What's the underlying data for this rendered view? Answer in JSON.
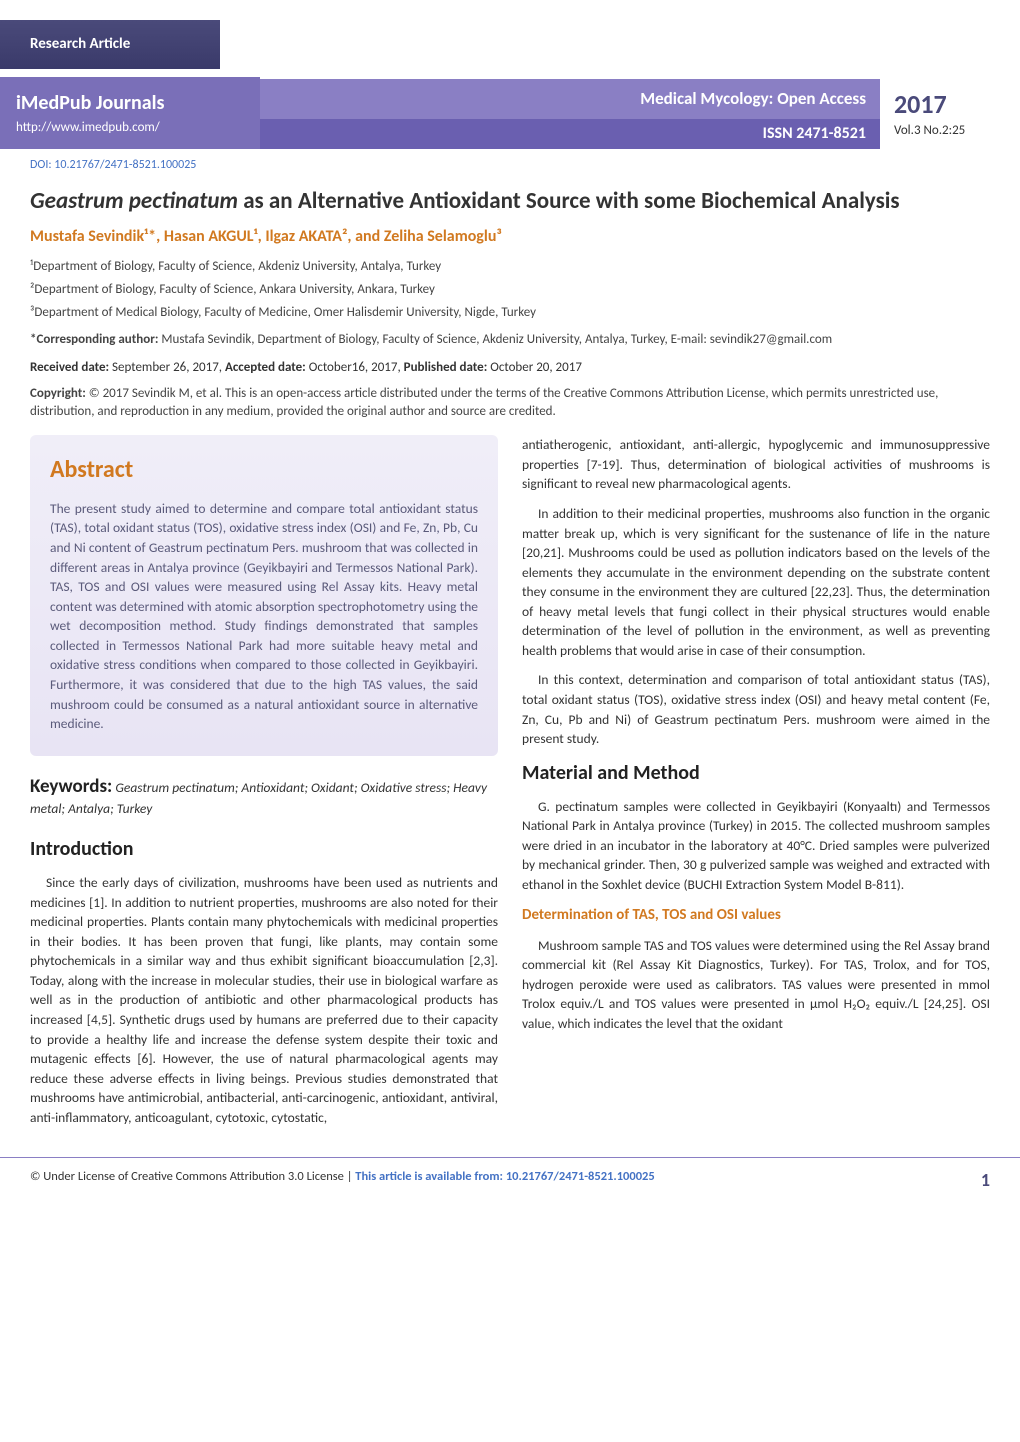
{
  "colors": {
    "banner_dark": "#4a4a7a",
    "banner_purple": "#7a6fb8",
    "banner_light": "#8a7fc4",
    "issn_bg": "#6a5fb0",
    "accent_orange": "#d17920",
    "link_blue": "#4472c4",
    "abstract_bg": "#e8e4f4"
  },
  "header": {
    "research_label": "Research Article",
    "imedpub_title": "iMedPub Journals",
    "imedpub_url": "http://www.imedpub.com/",
    "journal_name": "Medical Mycology: Open Access",
    "issn": "ISSN 2471-8521",
    "year": "2017",
    "vol": "Vol.3 No.2:25",
    "doi": "DOI: 10.21767/2471-8521.100025"
  },
  "title": {
    "italic": "Geastrum pectinatum",
    "rest": " as an Alternative Antioxidant Source with some Biochemical Analysis"
  },
  "authors": "Mustafa Sevindik¹*, Hasan AKGUL¹, Ilgaz AKATA², and Zeliha Selamoglu³",
  "affiliations": [
    "¹Department of Biology, Faculty of Science, Akdeniz University, Antalya, Turkey",
    "²Department of Biology, Faculty of Science, Ankara University, Ankara, Turkey",
    "³Department of Medical Biology, Faculty of Medicine, Omer Halisdemir University, Nigde, Turkey"
  ],
  "corresponding": {
    "label": "*Corresponding author:",
    "text": " Mustafa Sevindik, Department of Biology, Faculty of Science, Akdeniz University, Antalya, Turkey, E-mail: sevindik27@gmail.com"
  },
  "dates": {
    "received_label": "Received date:",
    "received": " September 26, 2017, ",
    "accepted_label": "Accepted date:",
    "accepted": " October16, 2017,",
    "published_label": "Published date:",
    "published": " October 20, 2017"
  },
  "copyright": {
    "label": "Copyright:",
    "text": " © 2017 Sevindik M, et al. This is an open-access article distributed under the terms of the Creative Commons Attribution License, which permits unrestricted use, distribution, and reproduction in any medium, provided the original author and source are credited."
  },
  "abstract": {
    "heading": "Abstract",
    "text": "The present study aimed to determine and compare total antioxidant status (TAS), total oxidant status (TOS), oxidative stress index (OSI) and Fe, Zn, Pb, Cu and Ni content of Geastrum pectinatum Pers. mushroom that was collected in different areas in Antalya province (Geyikbayiri and Termessos National Park). TAS, TOS and OSI values were measured using Rel Assay kits. Heavy metal content was determined with atomic absorption spectrophotometry using the wet decomposition method. Study findings demonstrated that samples collected in Termessos National Park had more suitable heavy metal and oxidative stress conditions when compared to those collected in Geyikbayiri. Furthermore, it was considered that due to the high TAS values, the said mushroom could be consumed as a natural antioxidant source in alternative medicine."
  },
  "keywords": {
    "label": "Keywords:",
    "text": " Geastrum pectinatum; Antioxidant; Oxidant; Oxidative stress; Heavy metal; Antalya; Turkey"
  },
  "sections": {
    "intro": {
      "heading": "Introduction",
      "p1": "Since the early days of civilization, mushrooms have been used as nutrients and medicines [1]. In addition to nutrient properties, mushrooms are also noted for their medicinal properties. Plants contain many phytochemicals with medicinal properties in their bodies. It has been proven that fungi, like plants, may contain some phytochemicals in a similar way and thus exhibit significant bioaccumulation [2,3]. Today, along with the increase in molecular studies, their use in biological warfare as well as in the production of antibiotic and other pharmacological products has increased [4,5]. Synthetic drugs used by humans are preferred due to their capacity to provide a healthy life and increase the defense system despite their toxic and mutagenic effects [6]. However, the use of natural pharmacological agents may reduce these adverse effects in living beings. Previous studies demonstrated that mushrooms have antimicrobial, antibacterial, anti-carcinogenic, antioxidant, antiviral, anti-inflammatory, anticoagulant, cytotoxic, cytostatic,",
      "p2_right": "antiatherogenic, antioxidant, anti-allergic, hypoglycemic and immunosuppressive properties [7-19]. Thus, determination of biological activities of mushrooms is significant to reveal new pharmacological agents.",
      "p3_right": "In addition to their medicinal properties, mushrooms also function in the organic matter break up, which is very significant for the sustenance of life in the nature [20,21]. Mushrooms could be used as pollution indicators based on the levels of the elements they accumulate in the environment depending on the substrate content they consume in the environment they are cultured [22,23]. Thus, the determination of heavy metal levels that fungi collect in their physical structures would enable determination of the level of pollution in the environment, as well as preventing health problems that would arise in case of their consumption.",
      "p4_right": "In this context, determination and comparison of total antioxidant status (TAS), total oxidant status (TOS), oxidative stress index (OSI) and heavy metal content (Fe, Zn, Cu, Pb and Ni) of Geastrum pectinatum Pers. mushroom were aimed in the present study."
    },
    "material": {
      "heading": "Material and Method",
      "p1": "G. pectinatum samples were collected in Geyikbayiri (Konyaaltı) and Termessos National Park in Antalya province (Turkey) in 2015. The collected mushroom samples were dried in an incubator in the laboratory at 40°C. Dried samples were pulverized by mechanical grinder. Then, 30 g pulverized sample was weighed and extracted with ethanol in the Soxhlet device (BUCHI Extraction System Model B-811).",
      "sub1": "Determination of TAS, TOS and OSI values",
      "p2": "Mushroom sample TAS and TOS values were determined using the Rel Assay brand commercial kit (Rel Assay Kit Diagnostics, Turkey). For TAS, Trolox, and for TOS, hydrogen peroxide were used as calibrators. TAS values were presented in mmol Trolox equiv./L and TOS values were presented in μmol H₂O₂ equiv./L [24,25]. OSI value, which indicates the level that the oxidant"
    }
  },
  "footer": {
    "license": "© Under License of Creative Commons Attribution 3.0 License | ",
    "link_label": "This article is available from:",
    "link": " 10.21767/2471-8521.100025",
    "page": "1"
  }
}
